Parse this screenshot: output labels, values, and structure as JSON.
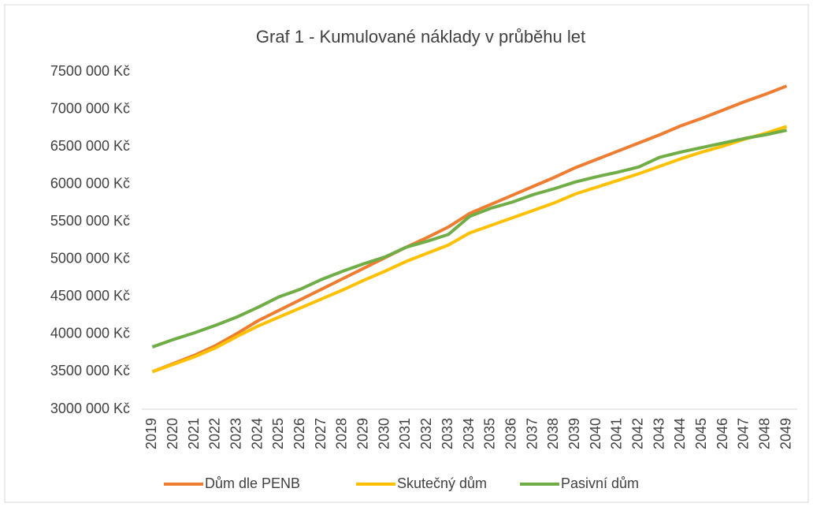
{
  "chart_data": {
    "type": "line",
    "title": "Graf 1 - Kumulované náklady v průběhu let",
    "categories": [
      "2019",
      "2020",
      "2021",
      "2022",
      "2023",
      "2024",
      "2025",
      "2026",
      "2027",
      "2028",
      "2029",
      "2030",
      "2031",
      "2032",
      "2033",
      "2034",
      "2035",
      "2036",
      "2037",
      "2038",
      "2039",
      "2040",
      "2041",
      "2042",
      "2043",
      "2044",
      "2045",
      "2046",
      "2047",
      "2048",
      "2049"
    ],
    "series": [
      {
        "name": "Dům dle PENB",
        "color": "#ed7d31",
        "values": [
          3500000,
          3610000,
          3720000,
          3850000,
          4010000,
          4180000,
          4320000,
          4460000,
          4600000,
          4740000,
          4880000,
          5020000,
          5160000,
          5290000,
          5430000,
          5610000,
          5730000,
          5850000,
          5970000,
          6090000,
          6220000,
          6330000,
          6440000,
          6550000,
          6660000,
          6780000,
          6880000,
          6990000,
          7100000,
          7200000,
          7310000
        ]
      },
      {
        "name": "Skutečný dům",
        "color": "#ffc000",
        "values": [
          3500000,
          3600000,
          3700000,
          3820000,
          3970000,
          4110000,
          4230000,
          4350000,
          4470000,
          4590000,
          4720000,
          4840000,
          4970000,
          5080000,
          5190000,
          5350000,
          5450000,
          5550000,
          5650000,
          5750000,
          5870000,
          5960000,
          6050000,
          6140000,
          6240000,
          6340000,
          6430000,
          6510000,
          6600000,
          6680000,
          6770000
        ]
      },
      {
        "name": "Pasivní dům",
        "color": "#70ad47",
        "values": [
          3830000,
          3930000,
          4020000,
          4120000,
          4230000,
          4360000,
          4500000,
          4600000,
          4730000,
          4840000,
          4940000,
          5030000,
          5160000,
          5240000,
          5330000,
          5570000,
          5680000,
          5760000,
          5860000,
          5940000,
          6030000,
          6100000,
          6160000,
          6230000,
          6360000,
          6430000,
          6490000,
          6550000,
          6610000,
          6660000,
          6720000
        ]
      }
    ],
    "ylim": [
      3000000,
      7500000
    ],
    "yticks": [
      {
        "value": 3000000,
        "label": "3000 000 Kč"
      },
      {
        "value": 3500000,
        "label": "3500 000 Kč"
      },
      {
        "value": 4000000,
        "label": "4000 000 Kč"
      },
      {
        "value": 4500000,
        "label": "4500 000 Kč"
      },
      {
        "value": 5000000,
        "label": "5000 000 Kč"
      },
      {
        "value": 5500000,
        "label": "5500 000 Kč"
      },
      {
        "value": 6000000,
        "label": "6000 000 Kč"
      },
      {
        "value": 6500000,
        "label": "6500 000 Kč"
      },
      {
        "value": 7000000,
        "label": "7000 000 Kč"
      },
      {
        "value": 7500000,
        "label": "7500 000 Kč"
      }
    ],
    "grid": false,
    "legend": "bottom"
  }
}
